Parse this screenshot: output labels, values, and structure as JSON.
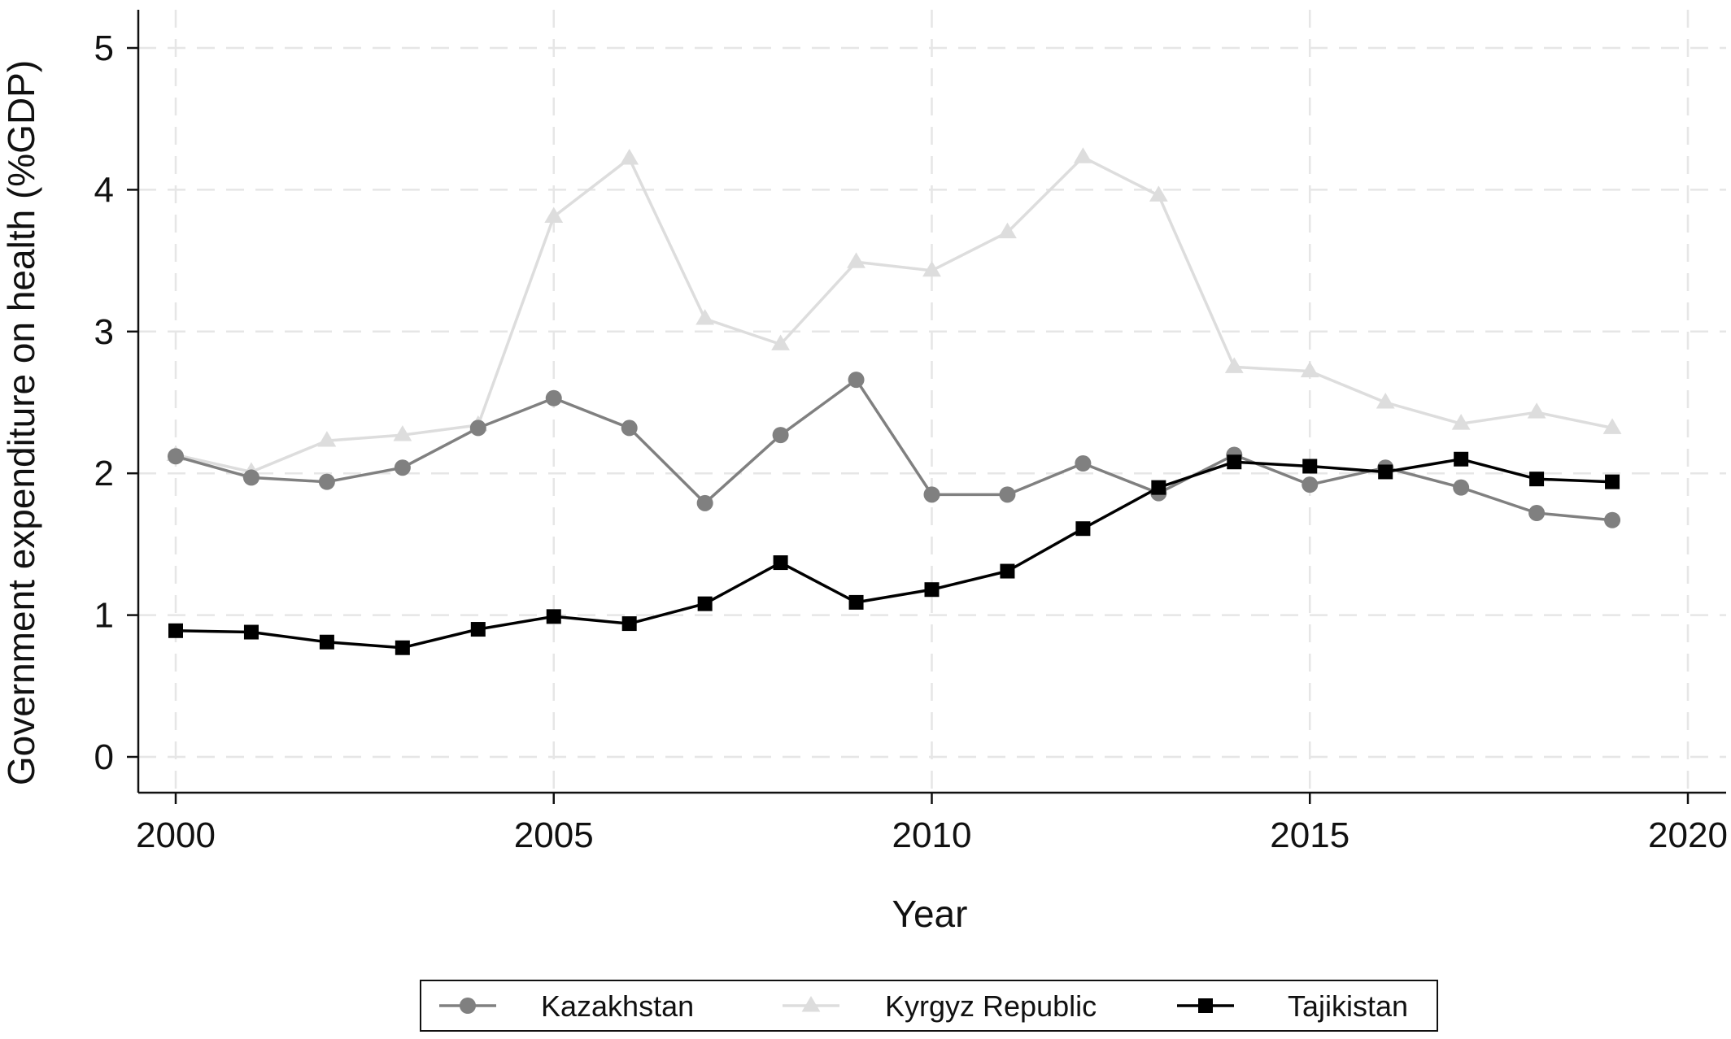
{
  "chart_data": {
    "type": "line",
    "xlabel": "Year",
    "ylabel": "Government expenditure on health (%GDP)",
    "xlim": [
      2000,
      2020
    ],
    "ylim": [
      0,
      5
    ],
    "x_ticks": [
      "2000",
      "2005",
      "2010",
      "2015",
      "2020"
    ],
    "y_ticks": [
      "0",
      "1",
      "2",
      "3",
      "4",
      "5"
    ],
    "grid": true,
    "legend_position": "bottom",
    "x": [
      2000,
      2001,
      2002,
      2003,
      2004,
      2005,
      2006,
      2007,
      2008,
      2009,
      2010,
      2011,
      2012,
      2013,
      2014,
      2015,
      2016,
      2017,
      2018,
      2019
    ],
    "series": [
      {
        "name": "Kazakhstan",
        "marker": "circle",
        "color": "#808080",
        "values": [
          2.12,
          1.97,
          1.94,
          2.04,
          2.32,
          2.53,
          2.32,
          1.79,
          2.27,
          2.66,
          1.85,
          1.85,
          2.07,
          1.86,
          2.13,
          1.92,
          2.04,
          1.9,
          1.72,
          1.67
        ]
      },
      {
        "name": "Kyrgyz Republic",
        "marker": "triangle",
        "color": "#dddddd",
        "values": [
          2.13,
          2.01,
          2.23,
          2.27,
          2.34,
          3.81,
          4.22,
          3.09,
          2.91,
          3.49,
          3.43,
          3.7,
          4.23,
          3.96,
          2.75,
          2.72,
          2.5,
          2.35,
          2.43,
          2.32
        ]
      },
      {
        "name": "Tajikistan",
        "marker": "square",
        "color": "#000000",
        "values": [
          0.89,
          0.88,
          0.81,
          0.77,
          0.9,
          0.99,
          0.94,
          1.08,
          1.37,
          1.09,
          1.18,
          1.31,
          1.61,
          1.9,
          2.08,
          2.05,
          2.01,
          2.1,
          1.96,
          1.94
        ]
      }
    ]
  }
}
